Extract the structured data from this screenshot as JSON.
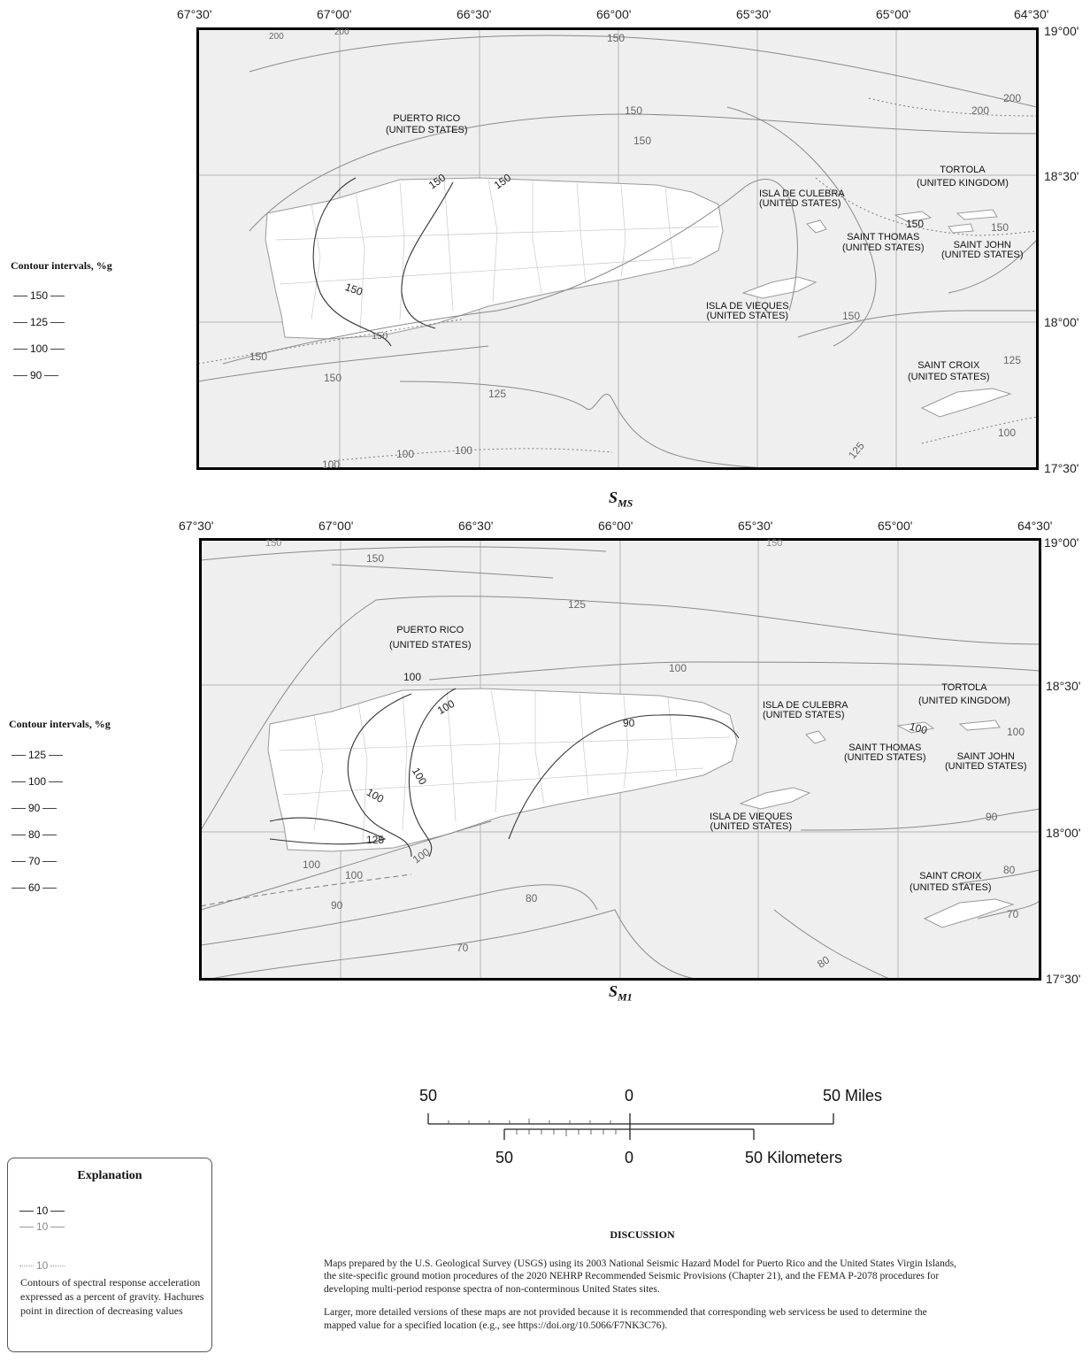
{
  "maps": [
    {
      "title_main": "S",
      "title_sub": "MS",
      "lon_labels": [
        "67°30'",
        "67°00'",
        "66°30'",
        "66°00'",
        "65°30'",
        "65°00'",
        "64°30'"
      ],
      "lat_labels": [
        "19°00'",
        "18°30'",
        "18°00'",
        "17°30'"
      ],
      "place_labels": [
        {
          "line1": "PUERTO RICO",
          "line2": "(UNITED STATES)"
        },
        {
          "line1": "ISLA DE CULEBRA",
          "line2": "(UNITED STATES)"
        },
        {
          "line1": "TORTOLA",
          "line2": "(UNITED KINGDOM)"
        },
        {
          "line1": "SAINT THOMAS",
          "line2": "(UNITED STATES)"
        },
        {
          "line1": "SAINT JOHN",
          "line2": "(UNITED STATES)"
        },
        {
          "line1": "ISLA DE VIEQUES",
          "line2": "(UNITED STATES)"
        },
        {
          "line1": "SAINT CROIX",
          "line2": "(UNITED STATES)"
        }
      ],
      "contour_labels": [
        "200",
        "200",
        "150",
        "150",
        "150",
        "200",
        "200",
        "150",
        "150",
        "150",
        "150",
        "150",
        "150",
        "150",
        "150",
        "125",
        "125",
        "125",
        "100",
        "100",
        "100",
        "100",
        "150"
      ],
      "legend_title": "Contour intervals, %g",
      "legend_values": [
        "150",
        "125",
        "100",
        "90"
      ]
    },
    {
      "title_main": "S",
      "title_sub": "M1",
      "lon_labels": [
        "67°30'",
        "67°00'",
        "66°30'",
        "66°00'",
        "65°30'",
        "65°00'",
        "64°30'"
      ],
      "lat_labels": [
        "19°00'",
        "18°30'",
        "18°00'",
        "17°30'"
      ],
      "place_labels": [
        {
          "line1": "PUERTO RICO",
          "line2": "(UNITED STATES)"
        },
        {
          "line1": "ISLA DE CULEBRA",
          "line2": "(UNITED STATES)"
        },
        {
          "line1": "TORTOLA",
          "line2": "(UNITED KINGDOM)"
        },
        {
          "line1": "SAINT THOMAS",
          "line2": "(UNITED STATES)"
        },
        {
          "line1": "SAINT JOHN",
          "line2": "(UNITED STATES)"
        },
        {
          "line1": "ISLA DE VIEQUES",
          "line2": "(UNITED STATES)"
        },
        {
          "line1": "SAINT CROIX",
          "line2": "(UNITED STATES)"
        }
      ],
      "contour_labels": [
        "150",
        "150",
        "150",
        "125",
        "100",
        "100",
        "100",
        "100",
        "90",
        "100",
        "100",
        "100",
        "125",
        "100",
        "100",
        "100",
        "90",
        "80",
        "70",
        "90",
        "80",
        "70",
        "80"
      ],
      "legend_title": "Contour intervals, %g",
      "legend_values": [
        "125",
        "100",
        "90",
        "80",
        "70",
        "60"
      ]
    }
  ],
  "scale": {
    "miles_left": "50",
    "miles_zero": "0",
    "miles_right": "50 Miles",
    "km_left": "50",
    "km_zero": "0",
    "km_right": "50 Kilometers"
  },
  "explanation": {
    "title": "Explanation",
    "line_value_1": "10",
    "line_value_2": "10",
    "line_value_3": "10",
    "description": "Contours of spectral response acceleration expressed as a percent of gravity. Hachures point in direction of decreasing values"
  },
  "discussion": {
    "title": "DISCUSSION",
    "paragraph1": "Maps prepared by the U.S. Geological Survey (USGS) using its 2003 National Seismic Hazard Model for Puerto Rico and the United States Virgin Islands, the site-specific ground motion procedures of the 2020 NEHRP Recommended Seismic Provisions (Chapter 21), and the FEMA P-2078 procedures for developing multi-period response spectra of non-conterminous United States sites.",
    "paragraph2": "Larger, more detailed versions of these maps are not provided because it is recommended that corresponding web servicess be used to determine the mapped value for a specified location (e.g., see https://doi.org/10.5066/F7NK3C76)."
  },
  "colors": {
    "map_background": "#efefef",
    "land": "#ffffff",
    "contour_primary": "#333333",
    "contour_secondary": "#8a8a8a",
    "grid": "#b5b5b5",
    "frame": "#000000"
  }
}
